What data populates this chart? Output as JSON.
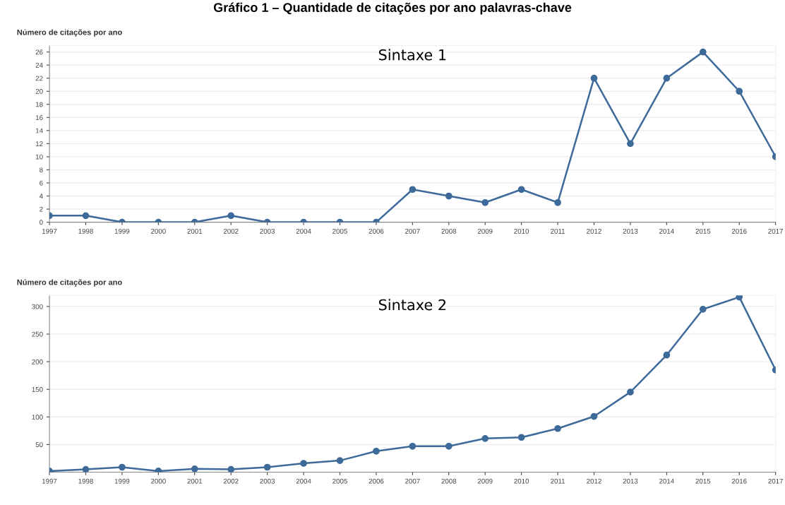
{
  "chart_data": [
    {
      "type": "line",
      "title": "Sintaxe 1",
      "ylabel": "Número de citações por ano",
      "annotations": [
        "Gráfico 1 – Quantidade de citações por ano palavras-chave"
      ],
      "x": [
        1997,
        1998,
        1999,
        2000,
        2001,
        2002,
        2003,
        2004,
        2005,
        2006,
        2007,
        2008,
        2009,
        2010,
        2011,
        2012,
        2013,
        2014,
        2015,
        2016,
        2017
      ],
      "series": [
        {
          "color": "#3d6a99",
          "values": [
            1,
            1,
            0,
            0,
            0,
            1,
            0,
            0,
            0,
            0,
            5,
            4,
            3,
            5,
            3,
            22,
            12,
            22,
            26,
            20,
            10
          ]
        }
      ],
      "xlim": [
        1997,
        2017
      ],
      "xticks": [
        1997,
        1998,
        1999,
        2000,
        2001,
        2002,
        2003,
        2004,
        2005,
        2006,
        2007,
        2008,
        2009,
        2010,
        2011,
        2012,
        2013,
        2014,
        2015,
        2016,
        2017
      ],
      "ylim": [
        0,
        27
      ],
      "yticks": [
        0,
        2,
        4,
        6,
        8,
        10,
        12,
        14,
        16,
        18,
        20,
        22,
        24,
        26
      ],
      "grid": "y",
      "marker": "circle",
      "line_style": "solid"
    },
    {
      "type": "line",
      "title": "Sintaxe 2",
      "ylabel": "Número de citações por ano",
      "x": [
        1997,
        1998,
        1999,
        2000,
        2001,
        2002,
        2003,
        2004,
        2005,
        2006,
        2007,
        2008,
        2009,
        2010,
        2011,
        2012,
        2013,
        2014,
        2015,
        2016,
        2017
      ],
      "series": [
        {
          "color": "#3d6a99",
          "values": [
            2,
            5,
            9,
            2,
            6,
            5,
            9,
            16,
            21,
            38,
            47,
            47,
            61,
            63,
            79,
            101,
            145,
            212,
            295,
            317,
            185
          ]
        }
      ],
      "xlim": [
        1997,
        2017
      ],
      "xticks": [
        1997,
        1998,
        1999,
        2000,
        2001,
        2002,
        2003,
        2004,
        2005,
        2006,
        2007,
        2008,
        2009,
        2010,
        2011,
        2012,
        2013,
        2014,
        2015,
        2016,
        2017
      ],
      "ylim": [
        0,
        320
      ],
      "yticks": [
        50,
        100,
        150,
        200,
        250,
        300
      ],
      "grid": "y",
      "marker": "circle",
      "line_style": "solid"
    }
  ]
}
